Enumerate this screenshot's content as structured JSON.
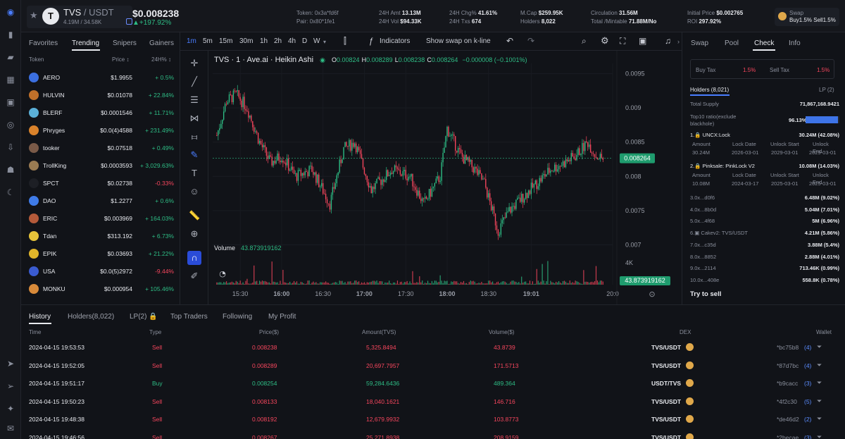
{
  "header": {
    "pair_base": "TVS",
    "pair_sep": " / ",
    "pair_quote": "USDT",
    "holders_line": "4.19M / 34.58K",
    "price": "$0.008238",
    "price_change": "+197.92%",
    "token_label": "Token:",
    "token_value": "0x3a*fd6f",
    "pair_label": "Pair:",
    "pair_value": "0x80*1fe1",
    "amt_label": "24H Amt",
    "amt_value": "13.13M",
    "vol_label": "24H Vol",
    "vol_value": "$94.33K",
    "chg_label": "24H Chg%",
    "chg_value": "41.61%",
    "txs_label": "24H Txs",
    "txs_value": "674",
    "mcap_label": "M.Cap",
    "mcap_value": "$259.95K",
    "holders_label": "Holders",
    "holders_value": "8,022",
    "circ_label": "Circulation",
    "circ_value": "31.56M",
    "total_label": "Total /Mintable",
    "total_value": "71.88M/No",
    "init_label": "Initial Price",
    "init_value": "$0.002765",
    "roi_label": "ROI",
    "roi_value": "297.92%",
    "swap_label": "Swap",
    "swap_value": "Buy1.5%  Sell1.5%"
  },
  "tokenlist": {
    "tabs": [
      "Favorites",
      "Trending",
      "Snipers",
      "Gainers"
    ],
    "active_tab": "Trending",
    "col_token": "Token",
    "col_price": "Price ↕",
    "col_change": "24H% ↕",
    "rows": [
      {
        "name": "AERO",
        "price": "$1.9955",
        "change": "+ 0.5%",
        "up": true,
        "color": "#3b6fe0"
      },
      {
        "name": "HULVIN",
        "price": "$0.01078",
        "change": "+ 22.84%",
        "up": true,
        "color": "#c0702a"
      },
      {
        "name": "BLERF",
        "price": "$0.0001546",
        "change": "+ 11.71%",
        "up": true,
        "color": "#5bb0d8"
      },
      {
        "name": "Phryges",
        "price": "$0.0(4)4588",
        "change": "+ 231.49%",
        "up": true,
        "color": "#d9822b"
      },
      {
        "name": "tooker",
        "price": "$0.07518",
        "change": "+ 0.49%",
        "up": true,
        "color": "#7a5a48"
      },
      {
        "name": "TrollKing",
        "price": "$0.0003593",
        "change": "+ 3,029.63%",
        "up": true,
        "color": "#9a7b52"
      },
      {
        "name": "SPCT",
        "price": "$0.02738",
        "change": "-0.33%",
        "up": false,
        "color": "#1d1f25"
      },
      {
        "name": "DAO",
        "price": "$1.2277",
        "change": "+ 0.6%",
        "up": true,
        "color": "#3f7be8"
      },
      {
        "name": "ERIC",
        "price": "$0.003969",
        "change": "+ 164.03%",
        "up": true,
        "color": "#b45a3a"
      },
      {
        "name": "Tdan",
        "price": "$313.192",
        "change": "+ 6.73%",
        "up": true,
        "color": "#e6c33a"
      },
      {
        "name": "EPIK",
        "price": "$0.03693",
        "change": "+ 21.22%",
        "up": true,
        "color": "#e0b52a"
      },
      {
        "name": "USA",
        "price": "$0.0(5)2972",
        "change": "-9.44%",
        "up": false,
        "color": "#3a5bd0"
      },
      {
        "name": "MONKU",
        "price": "$0.000954",
        "change": "+ 105.46%",
        "up": true,
        "color": "#d88a3a"
      }
    ]
  },
  "chart": {
    "intervals": [
      "1m",
      "5m",
      "15m",
      "30m",
      "1h",
      "2h",
      "4h",
      "D",
      "W"
    ],
    "active_interval": "1m",
    "indicators_label": "Indicators",
    "swap_kline_label": "Show swap on k-line",
    "legend_title": "TVS · 1 · Ave.ai · Heikin Ashi",
    "legend_o": "0.00824",
    "legend_h": "0.008289",
    "legend_l": "0.008238",
    "legend_c": "0.008264",
    "legend_delta": "−0.000008 (−0.1001%)",
    "volume_label": "Volume",
    "volume_value": "43.873919162",
    "last_price_tag": "0.008264",
    "last_volume_tag": "43.873919162",
    "y_ticks": [
      "0.0095",
      "0.009",
      "0.0085",
      "0.008",
      "0.0075",
      "0.007"
    ],
    "vol_tick": "4K",
    "x_ticks": [
      "15:30",
      "16:00",
      "16:30",
      "17:00",
      "17:30",
      "18:00",
      "18:30",
      "19:01",
      "20:0"
    ]
  },
  "chart_data": {
    "type": "candlestick",
    "title": "TVS · 1 · Ave.ai · Heikin Ashi",
    "ylim": [
      0.00685,
      0.00965
    ],
    "x_range": [
      "15:10",
      "20:00"
    ],
    "x_ticks": [
      "15:30",
      "16:00",
      "16:30",
      "17:00",
      "17:30",
      "18:00",
      "18:30",
      "19:01",
      "20:0"
    ],
    "close_path": [
      {
        "t": "15:13",
        "p": 0.0086
      },
      {
        "t": "15:20",
        "p": 0.0091
      },
      {
        "t": "15:27",
        "p": 0.0092
      },
      {
        "t": "15:35",
        "p": 0.009
      },
      {
        "t": "15:44",
        "p": 0.0085
      },
      {
        "t": "15:52",
        "p": 0.0082
      },
      {
        "t": "16:00",
        "p": 0.0083
      },
      {
        "t": "16:10",
        "p": 0.008
      },
      {
        "t": "16:22",
        "p": 0.0081
      },
      {
        "t": "16:35",
        "p": 0.0076
      },
      {
        "t": "16:45",
        "p": 0.0084
      },
      {
        "t": "16:53",
        "p": 0.0085
      },
      {
        "t": "17:05",
        "p": 0.0078
      },
      {
        "t": "17:20",
        "p": 0.0081
      },
      {
        "t": "17:33",
        "p": 0.008
      },
      {
        "t": "17:43",
        "p": 0.0076
      },
      {
        "t": "17:55",
        "p": 0.008
      },
      {
        "t": "18:00",
        "p": 0.0087
      },
      {
        "t": "18:10",
        "p": 0.0083
      },
      {
        "t": "18:20",
        "p": 0.0081
      },
      {
        "t": "18:27",
        "p": 0.0079
      },
      {
        "t": "18:37",
        "p": 0.0072
      },
      {
        "t": "18:45",
        "p": 0.0075
      },
      {
        "t": "18:55",
        "p": 0.0077
      },
      {
        "t": "19:05",
        "p": 0.0079
      },
      {
        "t": "19:15",
        "p": 0.0081
      },
      {
        "t": "19:25",
        "p": 0.0082
      },
      {
        "t": "19:33",
        "p": 0.0083
      },
      {
        "t": "19:42",
        "p": 0.0085
      },
      {
        "t": "19:48",
        "p": 0.0083
      },
      {
        "t": "19:53",
        "p": 0.00826
      }
    ],
    "last_price": 0.008264,
    "colors": {
      "up": "#2ebd85",
      "down": "#f6465d"
    }
  },
  "rpanel": {
    "tabs": [
      "Swap",
      "Pool",
      "Check",
      "Info"
    ],
    "active_tab": "Check",
    "buy_tax_label": "Buy Tax",
    "buy_tax": "1.5%",
    "sell_tax_label": "Sell Tax",
    "sell_tax": "1.5%",
    "holders_tab": "Holders (8,021)",
    "lp_tab": "LP (2)",
    "total_supply_label": "Total Supply",
    "total_supply": "71,867,168.9421",
    "top10_label": "Top10 ratio(exclude blackhole)",
    "top10_value": "96.13%",
    "top10_fill": 0.9613,
    "lock1_title": "1.🔒 UNCX:Lock",
    "lock1_value": "30.24M (42.08%)",
    "lock_headers": [
      "Amount",
      "Lock Date",
      "Unlock Start",
      "Unlock End"
    ],
    "lock1_row": [
      "30.24M",
      "2026-03-01",
      "2029-03-01",
      "2029-03-01"
    ],
    "lock2_title": "2.🔒 Pinksale: PinkLock V2",
    "lock2_value": "10.08M (14.03%)",
    "lock2_row": [
      "10.08M",
      "2024-03-17",
      "2025-03-01",
      "2025-03-01"
    ],
    "holders": [
      {
        "addr": "3.0x...d0f6",
        "amt": "6.48M (9.02%)"
      },
      {
        "addr": "4.0x...8b0d",
        "amt": "5.04M (7.01%)"
      },
      {
        "addr": "5.0x...4f68",
        "amt": "5M (6.96%)"
      },
      {
        "addr": "6.▣ Cakev2: TVS/USDT",
        "amt": "4.21M (5.86%)"
      },
      {
        "addr": "7.0x...c35d",
        "amt": "3.88M (5.4%)"
      },
      {
        "addr": "8.0x...8852",
        "amt": "2.88M (4.01%)"
      },
      {
        "addr": "9.0x...2114",
        "amt": "713.46K (0.99%)"
      },
      {
        "addr": "10.0x...408e",
        "amt": "558.8K (0.78%)"
      }
    ],
    "try_sell": "Try to sell"
  },
  "bottom": {
    "tabs": [
      "History",
      "Holders(8,022)",
      "LP(2) 🔒",
      "Top Traders",
      "Following",
      "My Profit"
    ],
    "active_tab": "History",
    "headers": {
      "time": "Time",
      "type": "Type",
      "price": "Price($)",
      "amount": "Amount(TVS)",
      "volume": "Volume($)",
      "dex": "DEX",
      "wallet": "Wallet"
    },
    "rows": [
      {
        "time": "2024-04-15 19:53:53",
        "type": "Sell",
        "price": "0.008238",
        "amount": "5,325.8494",
        "volume": "43.8739",
        "dex": "TVS/USDT",
        "wallet": "*bc75b8",
        "count": "(4)"
      },
      {
        "time": "2024-04-15 19:52:05",
        "type": "Sell",
        "price": "0.008289",
        "amount": "20,697.7957",
        "volume": "171.5713",
        "dex": "TVS/USDT",
        "wallet": "*87d7bc",
        "count": "(4)"
      },
      {
        "time": "2024-04-15 19:51:17",
        "type": "Buy",
        "price": "0.008254",
        "amount": "59,284.6436",
        "volume": "489.364",
        "dex": "USDT/TVS",
        "wallet": "*b9cacc",
        "count": "(3)"
      },
      {
        "time": "2024-04-15 19:50:23",
        "type": "Sell",
        "price": "0.008133",
        "amount": "18,040.1621",
        "volume": "146.716",
        "dex": "TVS/USDT",
        "wallet": "*4f2c30",
        "count": "(5)"
      },
      {
        "time": "2024-04-15 19:48:38",
        "type": "Sell",
        "price": "0.008192",
        "amount": "12,679.9932",
        "volume": "103.8773",
        "dex": "TVS/USDT",
        "wallet": "*de46d2",
        "count": "(2)"
      },
      {
        "time": "2024-04-15 19:46:56",
        "type": "Sell",
        "price": "0.008267",
        "amount": "25,271.8938",
        "volume": "208.9159",
        "dex": "TVS/USDT",
        "wallet": "*2becae",
        "count": "(3)"
      }
    ]
  }
}
